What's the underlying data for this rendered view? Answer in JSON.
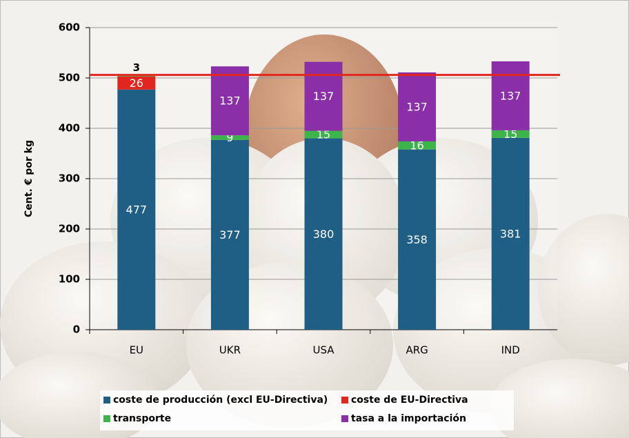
{
  "chart_data": {
    "type": "stacked-bar",
    "y_label": "Cent. € por kg",
    "categories": [
      "EU",
      "UKR",
      "USA",
      "ARG",
      "IND"
    ],
    "series": [
      {
        "name": "coste de producción (excl EU-Directiva)",
        "color": "#1f5f86",
        "values": [
          477,
          377,
          380,
          358,
          381
        ]
      },
      {
        "name": "coste de EU-Directiva",
        "color": "#e0261f",
        "values": [
          26,
          null,
          null,
          null,
          null
        ]
      },
      {
        "name": "transporte",
        "color": "#3cb44a",
        "values": [
          3,
          9,
          15,
          16,
          15
        ]
      },
      {
        "name": "tasa a la importación",
        "color": "#8a2fa8",
        "values": [
          null,
          137,
          137,
          137,
          137
        ]
      }
    ],
    "reference_line": {
      "value": 506,
      "color": "#e0261f"
    },
    "ylim": [
      0,
      600
    ],
    "yticks": [
      0,
      100,
      200,
      300,
      400,
      500,
      600
    ],
    "grid": true
  }
}
